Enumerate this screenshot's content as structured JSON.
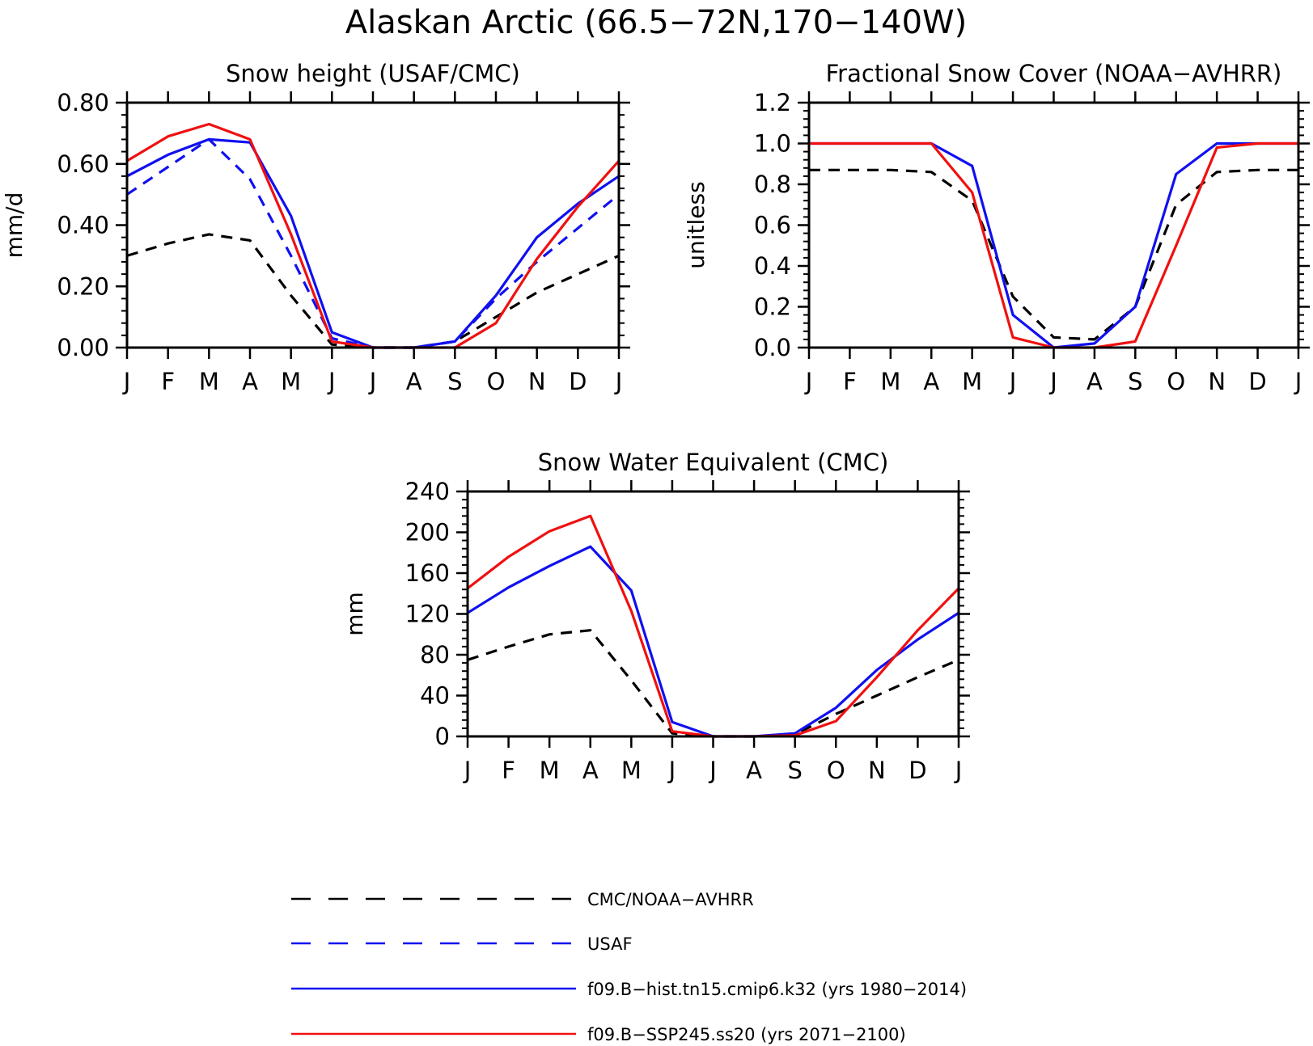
{
  "figure": {
    "title": "Alaskan Arctic (66.5−72N,170−140W)"
  },
  "months": [
    "J",
    "F",
    "M",
    "A",
    "M",
    "J",
    "J",
    "A",
    "S",
    "O",
    "N",
    "D",
    "J"
  ],
  "legend": [
    {
      "label": "CMC/NOAA−AVHRR",
      "color": "#000000",
      "dash": "dash"
    },
    {
      "label": "USAF",
      "color": "#1010f0",
      "dash": "dash"
    },
    {
      "label": "f09.B−hist.tn15.cmip6.k32 (yrs 1980−2014)",
      "color": "#1010f0",
      "dash": "solid"
    },
    {
      "label": "f09.B−SSP245.ss20 (yrs 2071−2100)",
      "color": "#f01010",
      "dash": "solid"
    }
  ],
  "chart_data": [
    {
      "type": "line",
      "title": "Snow height (USAF/CMC)",
      "ylabel": "mm/d",
      "xlabel": "",
      "categories": [
        "J",
        "F",
        "M",
        "A",
        "M",
        "J",
        "J",
        "A",
        "S",
        "O",
        "N",
        "D",
        "J"
      ],
      "ylim": [
        0,
        0.8
      ],
      "yticks": [
        "0.00",
        "0.20",
        "0.40",
        "0.60",
        "0.80"
      ],
      "series": [
        {
          "name": "CMC/NOAA−AVHRR",
          "color": "#000000",
          "dash": "dash",
          "values": [
            0.3,
            0.34,
            0.37,
            0.35,
            0.17,
            0.01,
            0.0,
            0.0,
            0.02,
            0.1,
            0.18,
            0.24,
            0.3
          ]
        },
        {
          "name": "USAF",
          "color": "#1010f0",
          "dash": "dash",
          "values": [
            0.5,
            0.59,
            0.68,
            0.55,
            0.3,
            0.03,
            0.0,
            0.0,
            0.02,
            0.16,
            0.28,
            0.39,
            0.5
          ]
        },
        {
          "name": "f09.B−hist.tn15.cmip6.k32 (yrs 1980−2014)",
          "color": "#1010f0",
          "dash": "solid",
          "values": [
            0.56,
            0.63,
            0.68,
            0.67,
            0.43,
            0.05,
            0.0,
            0.0,
            0.02,
            0.17,
            0.36,
            0.47,
            0.56
          ]
        },
        {
          "name": "f09.B−SSP245.ss20 (yrs 2071−2100)",
          "color": "#f01010",
          "dash": "solid",
          "values": [
            0.61,
            0.69,
            0.73,
            0.68,
            0.37,
            0.02,
            0.0,
            0.0,
            0.0,
            0.08,
            0.29,
            0.46,
            0.61
          ]
        }
      ]
    },
    {
      "type": "line",
      "title": "Fractional Snow Cover (NOAA−AVHRR)",
      "ylabel": "unitless",
      "xlabel": "",
      "categories": [
        "J",
        "F",
        "M",
        "A",
        "M",
        "J",
        "J",
        "A",
        "S",
        "O",
        "N",
        "D",
        "J"
      ],
      "ylim": [
        0,
        1.2
      ],
      "yticks": [
        "0.0",
        "0.2",
        "0.4",
        "0.6",
        "0.8",
        "1.0",
        "1.2"
      ],
      "series": [
        {
          "name": "CMC/NOAA−AVHRR",
          "color": "#000000",
          "dash": "dash",
          "values": [
            0.87,
            0.87,
            0.87,
            0.86,
            0.72,
            0.25,
            0.05,
            0.04,
            0.2,
            0.7,
            0.86,
            0.87,
            0.87
          ]
        },
        {
          "name": "f09.B−hist.tn15.cmip6.k32 (yrs 1980−2014)",
          "color": "#1010f0",
          "dash": "solid",
          "values": [
            1.0,
            1.0,
            1.0,
            1.0,
            0.89,
            0.16,
            0.0,
            0.02,
            0.2,
            0.85,
            1.0,
            1.0,
            1.0
          ]
        },
        {
          "name": "f09.B−SSP245.ss20 (yrs 2071−2100)",
          "color": "#f01010",
          "dash": "solid",
          "values": [
            1.0,
            1.0,
            1.0,
            1.0,
            0.76,
            0.05,
            0.0,
            0.0,
            0.03,
            0.5,
            0.98,
            1.0,
            1.0
          ]
        }
      ]
    },
    {
      "type": "line",
      "title": "Snow Water Equivalent (CMC)",
      "ylabel": "mm",
      "xlabel": "",
      "categories": [
        "J",
        "F",
        "M",
        "A",
        "M",
        "J",
        "J",
        "A",
        "S",
        "O",
        "N",
        "D",
        "J"
      ],
      "ylim": [
        0,
        240
      ],
      "yticks": [
        "0",
        "40",
        "80",
        "120",
        "160",
        "200",
        "240"
      ],
      "series": [
        {
          "name": "CMC/NOAA−AVHRR",
          "color": "#000000",
          "dash": "dash",
          "values": [
            75,
            88,
            100,
            104,
            55,
            3,
            0,
            0,
            2,
            22,
            40,
            58,
            75
          ]
        },
        {
          "name": "f09.B−hist.tn15.cmip6.k32 (yrs 1980−2014)",
          "color": "#1010f0",
          "dash": "solid",
          "values": [
            121,
            146,
            167,
            186,
            143,
            14,
            0,
            0,
            3,
            28,
            65,
            95,
            121
          ]
        },
        {
          "name": "f09.B−SSP245.ss20 (yrs 2071−2100)",
          "color": "#f01010",
          "dash": "solid",
          "values": [
            145,
            176,
            201,
            216,
            123,
            5,
            0,
            0,
            1,
            15,
            58,
            104,
            145
          ]
        }
      ]
    }
  ]
}
